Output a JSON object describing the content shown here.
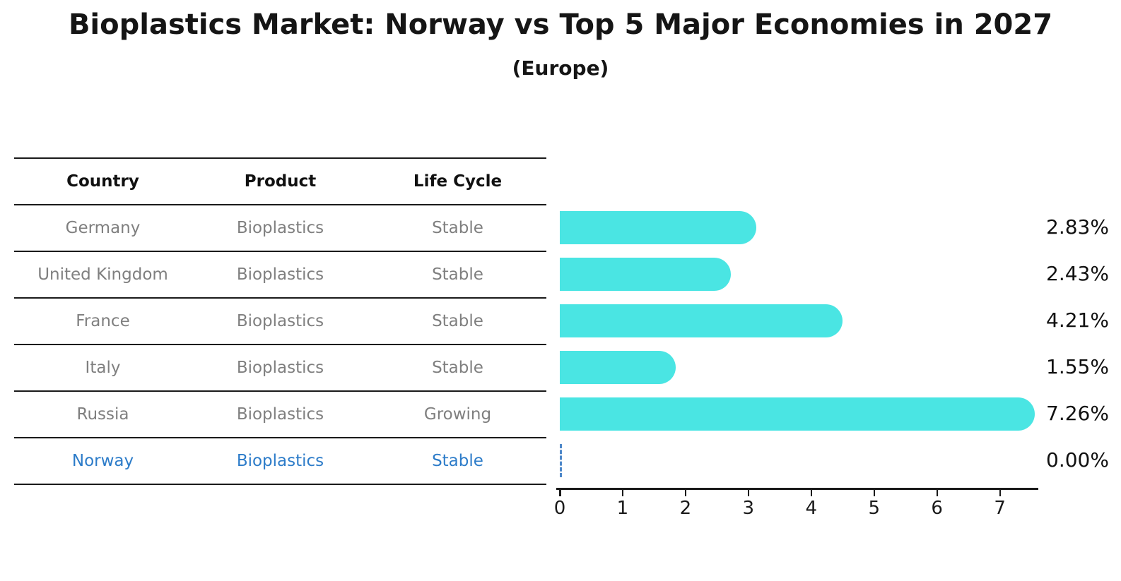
{
  "title": "Bioplastics Market: Norway vs Top 5 Major Economies in 2027",
  "subtitle": "(Europe)",
  "table": {
    "headers": [
      "Country",
      "Product",
      "Life Cycle"
    ],
    "rows": [
      {
        "cells": [
          "Germany",
          "Bioplastics",
          "Stable"
        ],
        "highlight": false
      },
      {
        "cells": [
          "United Kingdom",
          "Bioplastics",
          "Stable"
        ],
        "highlight": false
      },
      {
        "cells": [
          "France",
          "Bioplastics",
          "Stable"
        ],
        "highlight": false
      },
      {
        "cells": [
          "Italy",
          "Bioplastics",
          "Stable"
        ],
        "highlight": false
      },
      {
        "cells": [
          "Russia",
          "Bioplastics",
          "Growing"
        ],
        "highlight": false
      },
      {
        "cells": [
          "Norway",
          "Bioplastics",
          "Stable"
        ],
        "highlight": true
      }
    ]
  },
  "chart_data": {
    "type": "bar",
    "orientation": "horizontal",
    "title": "Bioplastics Market: Norway vs Top 5 Major Economies in 2027 (Europe)",
    "categories": [
      "Germany",
      "United Kingdom",
      "France",
      "Italy",
      "Russia",
      "Norway"
    ],
    "values": [
      2.83,
      2.43,
      4.21,
      1.55,
      7.26,
      0.0
    ],
    "value_labels": [
      "2.83%",
      "2.43%",
      "4.21%",
      "1.55%",
      "7.26%",
      "0.00%"
    ],
    "x_ticks": [
      "0",
      "1",
      "2",
      "3",
      "4",
      "5",
      "6",
      "7"
    ],
    "xlim": [
      0,
      7.6
    ],
    "xlabel": "",
    "ylabel": "",
    "grid": false,
    "legend": false,
    "bar_color": "#4ae5e3",
    "highlight_text_color": "#2d7cc9",
    "zero_marker_color": "#4d87c9",
    "highlight_index": 5
  }
}
